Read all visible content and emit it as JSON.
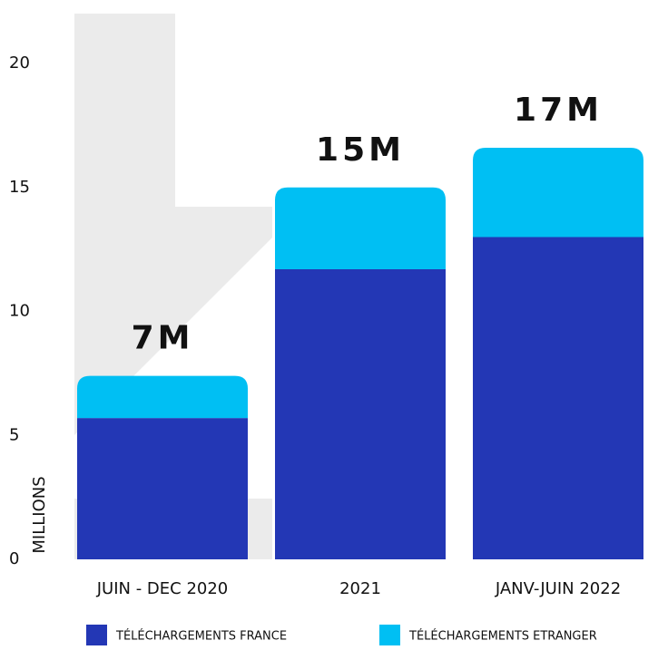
{
  "chart_data": {
    "type": "stacked_bar",
    "y_label": "MILLIONS",
    "categories": [
      "JUIN - DEC 2020",
      "2021",
      "JANV-JUIN 2022"
    ],
    "series": [
      {
        "name": "TÉLÉCHARGEMENTS FRANCE",
        "color": "#2337b5",
        "values": [
          5.7,
          11.7,
          13.0
        ]
      },
      {
        "name": "TÉLÉCHARGEMENTS ETRANGER",
        "color": "#00bff3",
        "values": [
          1.7,
          3.3,
          3.6
        ]
      }
    ],
    "annotations": [
      "7M",
      "15M",
      "17M"
    ],
    "ylim": [
      0,
      20
    ],
    "yticks": [
      0,
      5,
      10,
      15,
      20
    ],
    "legend": "bottom"
  }
}
